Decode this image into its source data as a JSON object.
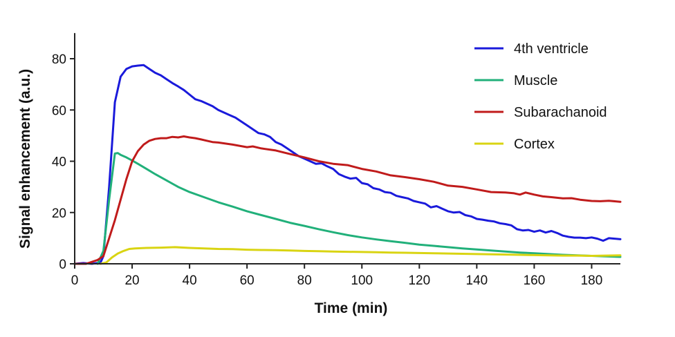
{
  "chart_data": {
    "type": "line",
    "title": "",
    "xlabel": "Time (min)",
    "ylabel": "Signal enhancement (a.u.)",
    "xlim": [
      0,
      190
    ],
    "ylim": [
      0,
      90
    ],
    "xticks": [
      0,
      20,
      40,
      60,
      80,
      100,
      120,
      140,
      160,
      180
    ],
    "yticks": [
      0,
      20,
      40,
      60,
      80
    ],
    "grid": false,
    "legend_position": "top-right",
    "series": [
      {
        "name": "4th ventricle",
        "color": "#1a1adb",
        "x": [
          0,
          3,
          6,
          9,
          10,
          12,
          14,
          16,
          18,
          20,
          22,
          24,
          26,
          28,
          30,
          32,
          34,
          36,
          38,
          40,
          42,
          44,
          46,
          48,
          50,
          52,
          54,
          56,
          58,
          60,
          62,
          64,
          66,
          68,
          70,
          72,
          74,
          76,
          78,
          80,
          82,
          84,
          86,
          88,
          90,
          92,
          94,
          96,
          98,
          100,
          102,
          104,
          106,
          108,
          110,
          112,
          114,
          116,
          118,
          120,
          122,
          124,
          126,
          128,
          130,
          132,
          134,
          136,
          138,
          140,
          142,
          144,
          146,
          148,
          150,
          152,
          154,
          156,
          158,
          160,
          162,
          164,
          166,
          168,
          170,
          172,
          174,
          176,
          178,
          180,
          182,
          184,
          186,
          188,
          190
        ],
        "y": [
          0,
          0.3,
          0,
          0.5,
          3,
          30,
          63,
          73,
          76,
          77,
          77.3,
          77.5,
          76,
          74.5,
          73.5,
          72,
          70.5,
          69.2,
          67.8,
          66,
          64.2,
          63.5,
          62.5,
          61.5,
          60,
          59,
          58,
          57,
          55.5,
          54,
          52.5,
          51,
          50.5,
          49.5,
          47.5,
          46.5,
          45,
          43.5,
          42,
          41,
          40,
          39,
          39.2,
          38,
          37,
          35,
          34,
          33.2,
          33.5,
          31.5,
          31,
          29.5,
          29,
          28,
          27.7,
          26.5,
          26,
          25.5,
          24.5,
          24,
          23.5,
          22,
          22.5,
          21.5,
          20.5,
          20,
          20.2,
          19,
          18.5,
          17.5,
          17.2,
          16.8,
          16.5,
          15.8,
          15.5,
          15,
          13.5,
          13,
          13.2,
          12.5,
          13,
          12.2,
          12.8,
          12,
          11,
          10.5,
          10.2,
          10.2,
          10,
          10.3,
          9.8,
          9,
          10,
          9.8,
          9.6
        ]
      },
      {
        "name": "Muscle",
        "color": "#21b07a",
        "x": [
          8,
          10,
          12,
          14,
          15,
          16,
          18,
          20,
          22,
          25,
          28,
          32,
          36,
          40,
          45,
          50,
          55,
          60,
          65,
          70,
          75,
          80,
          85,
          90,
          95,
          100,
          105,
          110,
          115,
          120,
          125,
          130,
          135,
          140,
          145,
          150,
          155,
          160,
          165,
          170,
          175,
          180,
          185,
          190
        ],
        "y": [
          0,
          5,
          25,
          43,
          43.2,
          42.5,
          41.5,
          40.3,
          39,
          37,
          35,
          32.5,
          30,
          28,
          26,
          24,
          22.3,
          20.5,
          19,
          17.5,
          16,
          14.8,
          13.5,
          12.3,
          11.2,
          10.3,
          9.5,
          8.8,
          8.2,
          7.5,
          7,
          6.5,
          6,
          5.6,
          5.2,
          4.8,
          4.4,
          4.1,
          3.8,
          3.5,
          3.3,
          3.1,
          2.9,
          2.7
        ]
      },
      {
        "name": "Subarachanoid",
        "color": "#c01b1b",
        "x": [
          0,
          4,
          8,
          10,
          12,
          14,
          16,
          18,
          20,
          22,
          24,
          26,
          28,
          30,
          32,
          34,
          36,
          38,
          40,
          42,
          44,
          46,
          48,
          50,
          55,
          60,
          62,
          65,
          70,
          75,
          80,
          85,
          90,
          95,
          100,
          105,
          110,
          115,
          120,
          125,
          130,
          135,
          140,
          145,
          150,
          153,
          155,
          157,
          160,
          163,
          166,
          170,
          173,
          176,
          180,
          183,
          186,
          190
        ],
        "y": [
          0,
          0,
          1.5,
          3,
          10,
          17,
          25,
          33,
          40,
          44,
          46.5,
          48,
          48.7,
          49,
          49,
          49.5,
          49.3,
          49.7,
          49.3,
          49,
          48.5,
          48,
          47.5,
          47.3,
          46.5,
          45.5,
          45.8,
          45,
          44.2,
          42.8,
          41.5,
          40,
          39,
          38.5,
          37,
          36,
          34.5,
          33.8,
          33,
          32,
          30.5,
          30,
          29,
          28,
          27.8,
          27.5,
          27,
          27.8,
          27,
          26.3,
          26,
          25.5,
          25.6,
          25,
          24.5,
          24.4,
          24.6,
          24.2
        ]
      },
      {
        "name": "Cortex",
        "color": "#d9d412",
        "x": [
          9,
          11,
          13,
          15,
          17,
          19,
          21,
          25,
          30,
          35,
          40,
          45,
          50,
          55,
          60,
          65,
          70,
          75,
          80,
          85,
          90,
          95,
          100,
          105,
          110,
          115,
          120,
          125,
          130,
          135,
          140,
          145,
          150,
          155,
          160,
          165,
          170,
          175,
          180,
          185,
          190
        ],
        "y": [
          0,
          0.5,
          2.5,
          4,
          5,
          5.8,
          6,
          6.2,
          6.3,
          6.5,
          6.2,
          6,
          5.8,
          5.7,
          5.5,
          5.4,
          5.3,
          5.2,
          5,
          4.9,
          4.8,
          4.7,
          4.6,
          4.5,
          4.4,
          4.3,
          4.2,
          4.1,
          4,
          3.9,
          3.8,
          3.7,
          3.6,
          3.5,
          3.4,
          3.3,
          3.2,
          3.2,
          3.1,
          3.2,
          3.3
        ]
      }
    ]
  }
}
